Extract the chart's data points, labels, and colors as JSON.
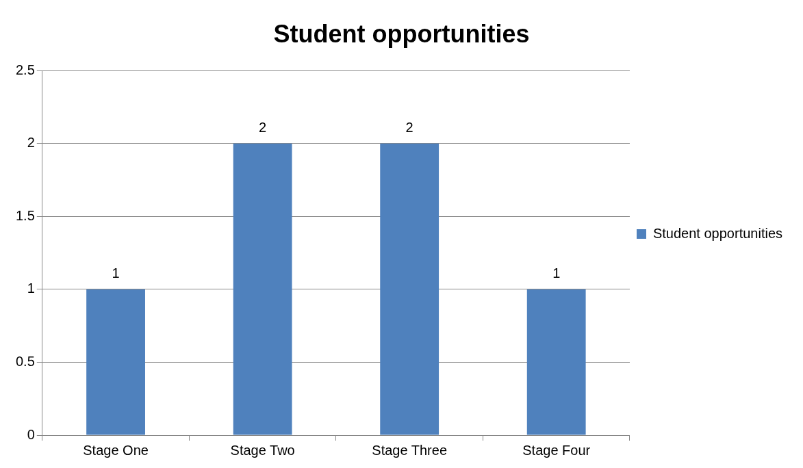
{
  "chart_data": {
    "type": "bar",
    "title": "Student opportunities",
    "categories": [
      "Stage One",
      "Stage Two",
      "Stage Three",
      "Stage Four"
    ],
    "series": [
      {
        "name": "Student opportunities",
        "color": "#4f81bd",
        "values": [
          1,
          2,
          2,
          1
        ]
      }
    ],
    "ylim": [
      0,
      2.5
    ],
    "yticks": [
      0,
      0.5,
      1,
      1.5,
      2,
      2.5
    ],
    "grid": "y",
    "legend": "right",
    "data_labels": true
  }
}
